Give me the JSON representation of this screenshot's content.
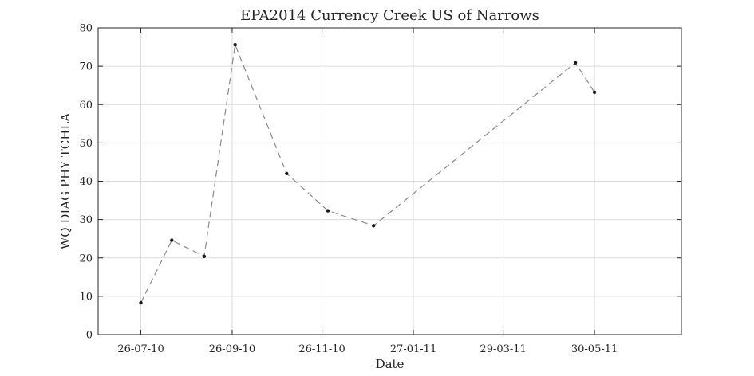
{
  "chart_data": {
    "type": "line",
    "title": "EPA2014 Currency Creek US of Narrows",
    "xlabel": "Date",
    "ylabel": "WQ DIAG PHY TCHLA",
    "ylim": [
      0,
      80
    ],
    "yticks": [
      0,
      10,
      20,
      30,
      40,
      50,
      60,
      70,
      80
    ],
    "xlim": [
      "2010-06-27",
      "2011-07-28"
    ],
    "xticks": [
      {
        "date": "2010-07-26",
        "label": "26-07-10"
      },
      {
        "date": "2010-09-26",
        "label": "26-09-10"
      },
      {
        "date": "2010-11-26",
        "label": "26-11-10"
      },
      {
        "date": "2011-01-27",
        "label": "27-01-11"
      },
      {
        "date": "2011-03-29",
        "label": "29-03-11"
      },
      {
        "date": "2011-05-30",
        "label": "30-05-11"
      }
    ],
    "grid": true,
    "series": [
      {
        "line_style": "dashed",
        "marker": "dot",
        "color": "#8a8a8a",
        "marker_color": "#1a1a1a",
        "points": [
          {
            "x": "2010-07-26",
            "y": 8.3
          },
          {
            "x": "2010-08-16",
            "y": 24.6
          },
          {
            "x": "2010-09-07",
            "y": 20.4
          },
          {
            "x": "2010-09-28",
            "y": 75.6
          },
          {
            "x": "2010-11-02",
            "y": 42.0
          },
          {
            "x": "2010-11-30",
            "y": 32.3
          },
          {
            "x": "2010-12-31",
            "y": 28.4
          },
          {
            "x": "2011-05-17",
            "y": 70.9
          },
          {
            "x": "2011-05-30",
            "y": 63.2
          }
        ]
      }
    ]
  }
}
